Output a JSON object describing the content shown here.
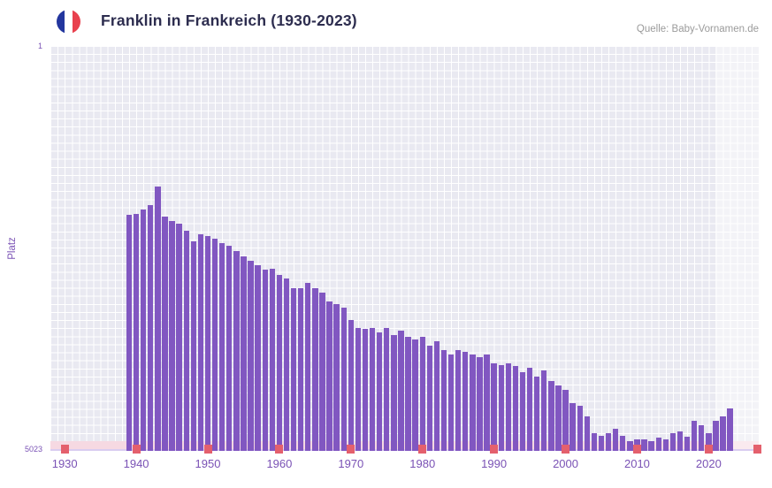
{
  "header": {
    "title": "Franklin in Frankreich (1930-2023)",
    "source": "Quelle: Baby-Vornamen.de"
  },
  "flag_icon": {
    "name": "france-flag-icon",
    "colors": [
      "#23369e",
      "#ffffff",
      "#e8414e"
    ]
  },
  "chart_data": {
    "type": "bar",
    "title": "Franklin in Frankreich (1930-2023)",
    "xlabel": "",
    "ylabel": "Platz",
    "y_axis": {
      "min": 1,
      "max": 5023,
      "inverted": true,
      "top_label": "1",
      "bottom_label": "5023"
    },
    "x_range": [
      1928,
      2027
    ],
    "x_ticks": [
      1930,
      1940,
      1950,
      1960,
      1970,
      1980,
      1990,
      2000,
      2010,
      2020
    ],
    "grid": true,
    "legend": false,
    "highlight_band": {
      "from": 2021,
      "to": 2027
    },
    "colors": {
      "bar": "#8157c1",
      "plot_bg": "#e9e9f1",
      "grid": "#ffffff",
      "axis_line": "#d9cdf0",
      "tick_text": "#7a52b5",
      "no_data_band": "#f6d9e2",
      "decade_marker": "#e4606d",
      "highlight_band": "rgba(255,255,255,0.45)"
    },
    "years": [
      1939,
      1940,
      1941,
      1942,
      1943,
      1944,
      1945,
      1946,
      1947,
      1948,
      1949,
      1950,
      1951,
      1952,
      1953,
      1954,
      1955,
      1956,
      1957,
      1958,
      1959,
      1960,
      1961,
      1962,
      1963,
      1964,
      1965,
      1966,
      1967,
      1968,
      1969,
      1970,
      1971,
      1972,
      1973,
      1974,
      1975,
      1976,
      1977,
      1978,
      1979,
      1980,
      1981,
      1982,
      1983,
      1984,
      1985,
      1986,
      1987,
      1988,
      1989,
      1990,
      1991,
      1992,
      1993,
      1994,
      1995,
      1996,
      1997,
      1998,
      1999,
      2000,
      2001,
      2002,
      2003,
      2004,
      2005,
      2006,
      2007,
      2008,
      2009,
      2010,
      2011,
      2012,
      2013,
      2014,
      2015,
      2016,
      2017,
      2018,
      2019,
      2020,
      2021,
      2022,
      2023
    ],
    "values": [
      2095,
      2080,
      2030,
      1970,
      1745,
      2120,
      2170,
      2200,
      2290,
      2420,
      2340,
      2360,
      2390,
      2450,
      2480,
      2540,
      2615,
      2670,
      2725,
      2780,
      2760,
      2840,
      2890,
      3000,
      3000,
      2945,
      3000,
      3055,
      3165,
      3200,
      3250,
      3405,
      3495,
      3515,
      3495,
      3550,
      3495,
      3585,
      3530,
      3605,
      3640,
      3605,
      3715,
      3660,
      3770,
      3825,
      3770,
      3800,
      3825,
      3860,
      3825,
      3935,
      3955,
      3935,
      3970,
      4045,
      3990,
      4100,
      4025,
      4155,
      4210,
      4265,
      4430,
      4460,
      4590,
      4805,
      4840,
      4805,
      4750,
      4840,
      4900,
      4880,
      4880,
      4900,
      4860,
      4880,
      4805,
      4785,
      4850,
      4645,
      4700,
      4805,
      4645,
      4590,
      4500
    ]
  }
}
